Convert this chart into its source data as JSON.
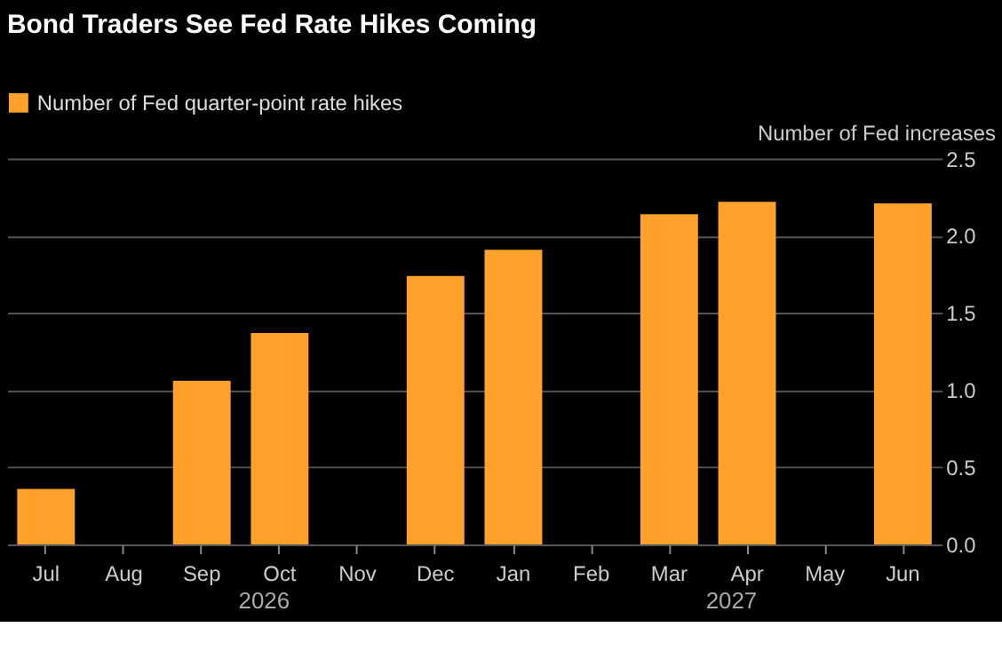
{
  "chart_data": {
    "type": "bar",
    "title": "Bond Traders See Fed Rate Hikes Coming",
    "ylabel": "Number of Fed increases",
    "categories": [
      "Jul",
      "Aug",
      "Sep",
      "Oct",
      "Nov",
      "Dec",
      "Jan",
      "Feb",
      "Mar",
      "Apr",
      "May",
      "Jun"
    ],
    "series": [
      {
        "name": "Number of Fed quarter-point rate hikes",
        "color": "#ffa12b",
        "values": [
          0.36,
          null,
          1.06,
          1.37,
          null,
          1.74,
          1.91,
          null,
          2.14,
          2.22,
          null,
          2.21
        ]
      }
    ],
    "ylim": [
      0,
      2.5
    ],
    "yticks": [
      {
        "value": 0,
        "label": "0.0"
      },
      0.5,
      {
        "value": 1,
        "label": "1.0"
      },
      1.5,
      {
        "value": 2,
        "label": "2.0"
      },
      2.5
    ],
    "grid": "y",
    "legend": "top left",
    "annotations": [
      "2026",
      "2027"
    ]
  }
}
